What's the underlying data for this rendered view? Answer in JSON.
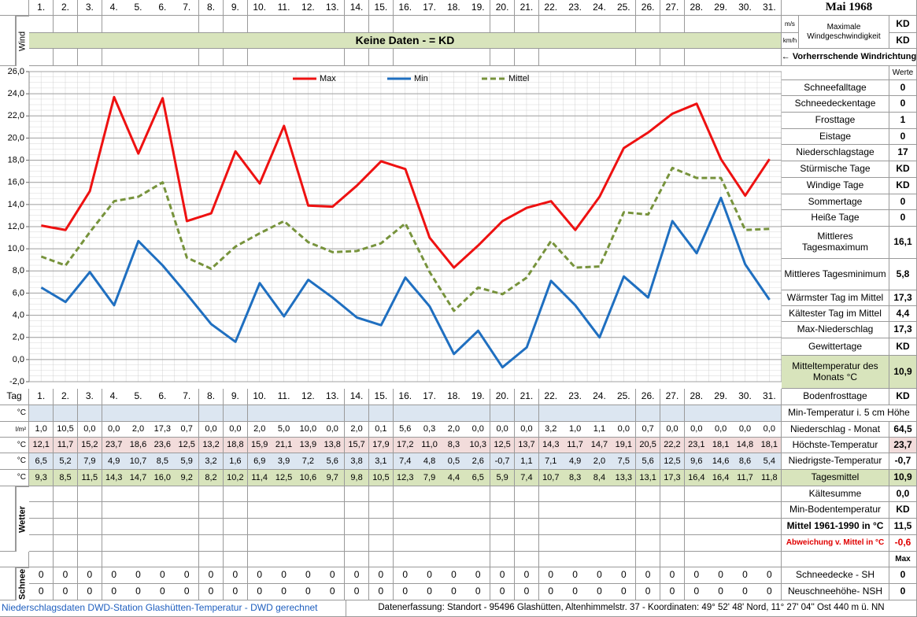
{
  "header": {
    "month": "Mai 1968",
    "wind_label": "Wind",
    "no_data": "Keine Daten -  = KD",
    "unit_ms": "m/s",
    "unit_kmh": "km/h",
    "max_wind_label": "Maximale Windgeschwindigkeit",
    "max_wind_ms": "KD",
    "max_wind_kmh": "KD",
    "wind_direction": "← Vorherrschende Windrichtung"
  },
  "chart_data": {
    "type": "line",
    "categories": [
      "1.",
      "2.",
      "3.",
      "4.",
      "5.",
      "6.",
      "7.",
      "8.",
      "9.",
      "10.",
      "11.",
      "12.",
      "13.",
      "14.",
      "15.",
      "16.",
      "17.",
      "18.",
      "19.",
      "20.",
      "21.",
      "22.",
      "23.",
      "24.",
      "25.",
      "26.",
      "27.",
      "28.",
      "29.",
      "30.",
      "31."
    ],
    "ylim": [
      -2,
      26
    ],
    "yticks": [
      {
        "value": -2,
        "label": "-2,0"
      },
      {
        "value": 0,
        "label": "0,0"
      },
      {
        "value": 2,
        "label": "2,0"
      },
      {
        "value": 4,
        "label": "4,0"
      },
      {
        "value": 6,
        "label": "6,0"
      },
      {
        "value": 8,
        "label": "8,0"
      },
      {
        "value": 10,
        "label": "10,0"
      },
      {
        "value": 12,
        "label": "12,0"
      },
      {
        "value": 14,
        "label": "14,0"
      },
      {
        "value": 16,
        "label": "16,0"
      },
      {
        "value": 18,
        "label": "18,0"
      },
      {
        "value": 20,
        "label": "20,0"
      },
      {
        "value": 22,
        "label": "22,0"
      },
      {
        "value": 24,
        "label": "24,0"
      },
      {
        "value": 26,
        "label": "26,0"
      }
    ],
    "grid": true,
    "legend": "top",
    "series": [
      {
        "name": "Max",
        "color": "#ee1111",
        "dashed": false,
        "values": [
          12.1,
          11.7,
          15.2,
          23.7,
          18.6,
          23.6,
          12.5,
          13.2,
          18.8,
          15.9,
          21.1,
          13.9,
          13.8,
          15.7,
          17.9,
          17.2,
          11.0,
          8.3,
          10.3,
          12.5,
          13.7,
          14.3,
          11.7,
          14.7,
          19.1,
          20.5,
          22.2,
          23.1,
          18.1,
          14.8,
          18.1
        ],
        "value_labels": [
          "12,1",
          "11,7",
          "15,2",
          "23,7",
          "18,6",
          "23,6",
          "12,5",
          "13,2",
          "18,8",
          "15,9",
          "21,1",
          "13,9",
          "13,8",
          "15,7",
          "17,9",
          "17,2",
          "11,0",
          "8,3",
          "10,3",
          "12,5",
          "13,7",
          "14,3",
          "11,7",
          "14,7",
          "19,1",
          "20,5",
          "22,2",
          "23,1",
          "18,1",
          "14,8",
          "18,1"
        ]
      },
      {
        "name": "Min",
        "color": "#1f6fc0",
        "dashed": false,
        "values": [
          6.5,
          5.2,
          7.9,
          4.9,
          10.7,
          8.5,
          5.9,
          3.2,
          1.6,
          6.9,
          3.9,
          7.2,
          5.6,
          3.8,
          3.1,
          7.4,
          4.8,
          0.5,
          2.6,
          -0.7,
          1.1,
          7.1,
          4.9,
          2.0,
          7.5,
          5.6,
          12.5,
          9.6,
          14.6,
          8.6,
          5.4
        ],
        "value_labels": [
          "6,5",
          "5,2",
          "7,9",
          "4,9",
          "10,7",
          "8,5",
          "5,9",
          "3,2",
          "1,6",
          "6,9",
          "3,9",
          "7,2",
          "5,6",
          "3,8",
          "3,1",
          "7,4",
          "4,8",
          "0,5",
          "2,6",
          "-0,7",
          "1,1",
          "7,1",
          "4,9",
          "2,0",
          "7,5",
          "5,6",
          "12,5",
          "9,6",
          "14,6",
          "8,6",
          "5,4"
        ]
      },
      {
        "name": "Mittel",
        "color": "#77933c",
        "dashed": true,
        "values": [
          9.3,
          8.5,
          11.5,
          14.3,
          14.7,
          16.0,
          9.2,
          8.2,
          10.2,
          11.4,
          12.5,
          10.6,
          9.7,
          9.8,
          10.5,
          12.3,
          7.9,
          4.4,
          6.5,
          5.9,
          7.4,
          10.7,
          8.3,
          8.4,
          13.3,
          13.1,
          17.3,
          16.4,
          16.4,
          11.7,
          11.8
        ],
        "value_labels": [
          "9,3",
          "8,5",
          "11,5",
          "14,3",
          "14,7",
          "16,0",
          "9,2",
          "8,2",
          "10,2",
          "11,4",
          "12,5",
          "10,6",
          "9,7",
          "9,8",
          "10,5",
          "12,3",
          "7,9",
          "4,4",
          "6,5",
          "5,9",
          "7,4",
          "10,7",
          "8,3",
          "8,4",
          "13,3",
          "13,1",
          "17,3",
          "16,4",
          "16,4",
          "11,7",
          "11,8"
        ]
      }
    ]
  },
  "table": {
    "day_label": "Tag",
    "unit_c": "°C",
    "unit_precip": "l/m²",
    "precipitation": [
      "1,0",
      "10,5",
      "0,0",
      "0,0",
      "2,0",
      "17,3",
      "0,7",
      "0,0",
      "0,0",
      "2,0",
      "5,0",
      "10,0",
      "0,0",
      "2,0",
      "0,1",
      "5,6",
      "0,3",
      "2,0",
      "0,0",
      "0,0",
      "0,0",
      "3,2",
      "1,0",
      "1,1",
      "0,0",
      "0,7",
      "0,0",
      "0,0",
      "0,0",
      "0,0",
      "0,0"
    ],
    "weather_label": "Wetter",
    "snow_label": "Schnee",
    "snow_depth": [
      0,
      0,
      0,
      0,
      0,
      0,
      0,
      0,
      0,
      0,
      0,
      0,
      0,
      0,
      0,
      0,
      0,
      0,
      0,
      0,
      0,
      0,
      0,
      0,
      0,
      0,
      0,
      0,
      0,
      0,
      0
    ],
    "new_snow": [
      0,
      0,
      0,
      0,
      0,
      0,
      0,
      0,
      0,
      0,
      0,
      0,
      0,
      0,
      0,
      0,
      0,
      0,
      0,
      0,
      0,
      0,
      0,
      0,
      0,
      0,
      0,
      0,
      0,
      0,
      0
    ]
  },
  "stats": {
    "header": "Werte",
    "max_header": "Max",
    "rows": [
      {
        "label": "Schneefalltage",
        "value": "0"
      },
      {
        "label": "Schneedeckentage",
        "value": "0"
      },
      {
        "label": "Frosttage",
        "value": "1"
      },
      {
        "label": "Eistage",
        "value": "0"
      },
      {
        "label": "Niederschlagstage",
        "value": "17"
      },
      {
        "label": "Stürmische Tage",
        "value": "KD"
      },
      {
        "label": "Windige Tage",
        "value": "KD"
      },
      {
        "label": "Sommertage",
        "value": "0"
      },
      {
        "label": "Heiße Tage",
        "value": "0"
      },
      {
        "label": "Mittleres Tagesmaximum",
        "value": "16,1"
      },
      {
        "label": "Mittleres Tagesminimum",
        "value": "5,8"
      },
      {
        "label": "Wärmster Tag im Mittel",
        "value": "17,3"
      },
      {
        "label": "Kältester Tag im Mittel",
        "value": "4,4"
      },
      {
        "label": "Max-Niederschlag",
        "value": "17,3"
      },
      {
        "label": "Gewittertage",
        "value": "KD"
      },
      {
        "label": "Mitteltemperatur des Monats °C",
        "value": "10,9"
      },
      {
        "label": "Bodenfrosttage",
        "value": "KD"
      },
      {
        "label": "Min-Temperatur i. 5 cm Höhe"
      },
      {
        "label": "Niederschlag - Monat",
        "value": "64,5"
      },
      {
        "label": "Höchste-Temperatur",
        "value": "23,7"
      },
      {
        "label": "Niedrigste-Temperatur",
        "value": "-0,7"
      },
      {
        "label": "Tagesmittel",
        "value": "10,9"
      },
      {
        "label": "Kältesumme",
        "value": "0,0"
      },
      {
        "label": "Min-Bodentemperatur",
        "value": "KD"
      },
      {
        "label": "Mittel 1961-1990 in °C",
        "value": "11,5"
      },
      {
        "label": "Abweichung v. Mittel in °C",
        "value": "-0,6"
      },
      {
        "label": "Schneedecke -  SH",
        "value": "0"
      },
      {
        "label": "Neuschneehöhe- NSH",
        "value": "0"
      }
    ]
  },
  "footer": {
    "left": "Niederschlagsdaten DWD-Station Glashütten-Temperatur -  DWD gerechnet",
    "right": "Datenerfassung: Standort -  95496  Glashütten, Altenhimmelstr. 37 - Koordinaten:  49° 52' 48' Nord,   11° 27' 04'' Ost   440 m ü. NN"
  }
}
